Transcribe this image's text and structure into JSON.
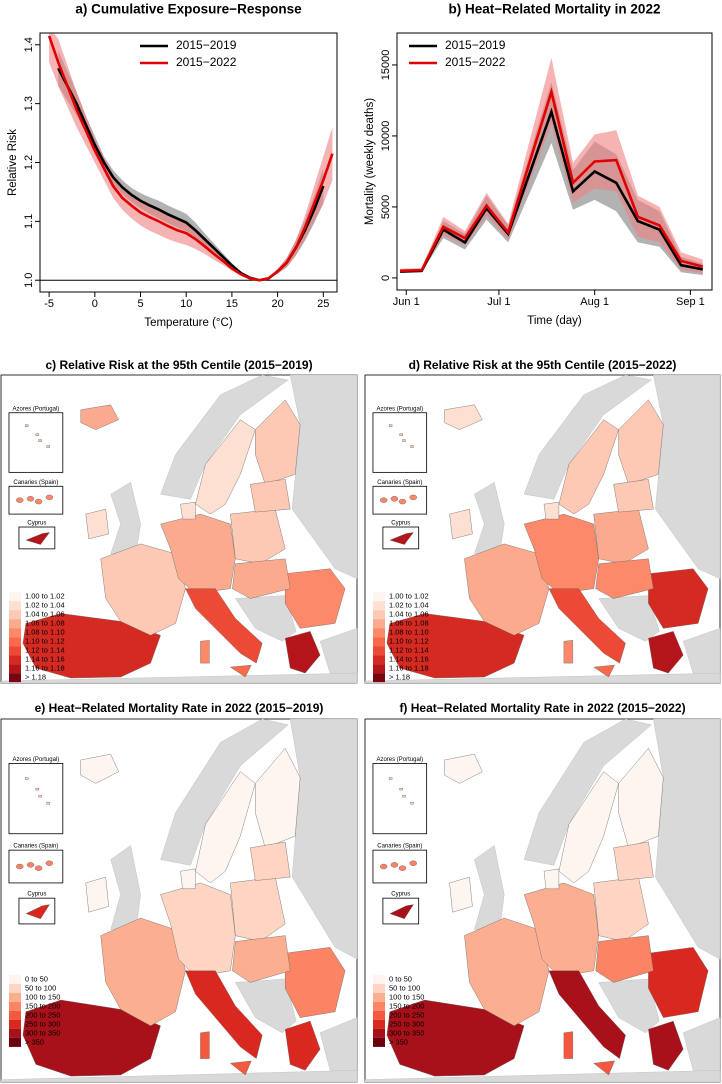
{
  "chart_data": [
    {
      "type": "line",
      "title": "a) Cumulative Exposure−Response",
      "x_label": "Temperature (°C)",
      "y_label": "Relative Risk",
      "x": [
        -5,
        -4,
        -3,
        -2,
        -1,
        0,
        1,
        2,
        3,
        4,
        5,
        6,
        7,
        8,
        9,
        10,
        11,
        12,
        13,
        14,
        15,
        16,
        17,
        18,
        19,
        20,
        21,
        22,
        23,
        24,
        25,
        26
      ],
      "xlim": [
        -6,
        26.5
      ],
      "ylim": [
        0.98,
        1.42
      ],
      "xticks": [
        -5,
        0,
        5,
        10,
        15,
        20,
        25
      ],
      "yticks": [
        {
          "value": 1,
          "label": "1.0"
        },
        1.1,
        1.2,
        1.3,
        1.4
      ],
      "hline": 1,
      "legend": "top",
      "series": [
        {
          "name": "2015−2019",
          "color": "#000000",
          "band_color": "#7f7f7f",
          "values": [
            null,
            1.36,
            1.33,
            1.3,
            1.265,
            1.23,
            1.2,
            1.175,
            1.158,
            1.145,
            1.135,
            1.127,
            1.12,
            1.112,
            1.105,
            1.098,
            1.085,
            1.07,
            1.055,
            1.04,
            1.025,
            1.012,
            1.004,
            1.0,
            1.003,
            1.015,
            1.03,
            1.055,
            1.085,
            1.12,
            1.16,
            null
          ],
          "lower": [
            null,
            1.33,
            1.305,
            1.28,
            1.25,
            1.215,
            1.19,
            1.163,
            1.146,
            1.133,
            1.122,
            1.113,
            1.105,
            1.097,
            1.09,
            1.083,
            1.072,
            1.06,
            1.047,
            1.034,
            1.021,
            1.01,
            1.003,
            1.0,
            1.002,
            1.011,
            1.022,
            1.042,
            1.067,
            1.097,
            1.13,
            null
          ],
          "upper": [
            null,
            1.39,
            1.355,
            1.32,
            1.28,
            1.245,
            1.21,
            1.187,
            1.17,
            1.157,
            1.148,
            1.141,
            1.135,
            1.127,
            1.12,
            1.113,
            1.098,
            1.08,
            1.063,
            1.046,
            1.029,
            1.014,
            1.005,
            1.0,
            1.004,
            1.019,
            1.038,
            1.068,
            1.103,
            1.143,
            1.19,
            null
          ]
        },
        {
          "name": "2015−2022",
          "color": "#e00000",
          "band_color": "#f08080",
          "values": [
            1.415,
            1.37,
            1.33,
            1.29,
            1.255,
            1.22,
            1.19,
            1.16,
            1.14,
            1.127,
            1.115,
            1.107,
            1.1,
            1.092,
            1.085,
            1.08,
            1.07,
            1.058,
            1.045,
            1.033,
            1.02,
            1.01,
            1.003,
            1.0,
            1.003,
            1.015,
            1.03,
            1.055,
            1.09,
            1.13,
            1.17,
            1.215
          ],
          "lower": [
            1.37,
            1.33,
            1.295,
            1.26,
            1.23,
            1.2,
            1.17,
            1.14,
            1.12,
            1.105,
            1.093,
            1.084,
            1.077,
            1.07,
            1.064,
            1.06,
            1.053,
            1.045,
            1.035,
            1.026,
            1.016,
            1.008,
            1.002,
            1.0,
            1.002,
            1.011,
            1.022,
            1.042,
            1.07,
            1.1,
            1.13,
            1.17
          ],
          "upper": [
            1.43,
            1.41,
            1.365,
            1.32,
            1.28,
            1.24,
            1.21,
            1.18,
            1.16,
            1.149,
            1.137,
            1.13,
            1.123,
            1.114,
            1.106,
            1.1,
            1.087,
            1.071,
            1.055,
            1.04,
            1.024,
            1.012,
            1.004,
            1.0,
            1.004,
            1.019,
            1.038,
            1.068,
            1.11,
            1.16,
            1.21,
            1.26
          ]
        }
      ]
    },
    {
      "type": "line",
      "title": "b) Heat−Related Mortality in 2022",
      "x_label": "Time (day)",
      "y_label": "Mortality (weekly deaths)",
      "x": [
        "2022-05-30",
        "2022-06-06",
        "2022-06-13",
        "2022-06-20",
        "2022-06-27",
        "2022-07-04",
        "2022-07-11",
        "2022-07-18",
        "2022-07-25",
        "2022-08-01",
        "2022-08-08",
        "2022-08-15",
        "2022-08-22",
        "2022-08-29",
        "2022-09-05"
      ],
      "xlim": [
        "2022-05-29",
        "2022-09-08"
      ],
      "ylim": [
        -850,
        17250
      ],
      "xticks": [
        {
          "value": "2022-06-01",
          "label": "Jun 1"
        },
        {
          "value": "2022-07-01",
          "label": "Jul 1"
        },
        {
          "value": "2022-08-01",
          "label": "Aug 1"
        },
        {
          "value": "2022-09-01",
          "label": "Sep 1"
        }
      ],
      "yticks": [
        0,
        5000,
        10000,
        15000
      ],
      "legend": "top",
      "series": [
        {
          "name": "2015−2019",
          "color": "#000000",
          "band_color": "#7f7f7f",
          "values": [
            450,
            500,
            3400,
            2500,
            4900,
            3100,
            7400,
            11700,
            6100,
            7500,
            6700,
            4000,
            3400,
            900,
            600
          ],
          "lower": [
            350,
            400,
            2800,
            2000,
            4100,
            2500,
            6000,
            9500,
            4800,
            5500,
            4700,
            2500,
            2200,
            400,
            200
          ],
          "upper": [
            600,
            650,
            4000,
            3100,
            5800,
            3700,
            8800,
            13800,
            7600,
            9600,
            8700,
            5500,
            4700,
            1500,
            1000
          ]
        },
        {
          "name": "2015−2022",
          "color": "#e00000",
          "band_color": "#f08080",
          "values": [
            500,
            550,
            3600,
            2800,
            5100,
            3200,
            8200,
            13100,
            6700,
            8200,
            8300,
            4300,
            3700,
            1200,
            800
          ],
          "lower": [
            400,
            420,
            3000,
            2300,
            4400,
            2700,
            6800,
            10800,
            5300,
            6300,
            6100,
            2900,
            2500,
            600,
            300
          ],
          "upper": [
            650,
            700,
            4300,
            3300,
            6000,
            3800,
            9700,
            15500,
            8100,
            10100,
            10400,
            5800,
            5000,
            1800,
            1300
          ]
        }
      ]
    },
    {
      "type": "map",
      "title": "c) Relative Risk at the 95th Centile (2015−2019)",
      "insets": [
        "Azores (Portugal)",
        "Canaries (Spain)",
        "Cyprus"
      ],
      "legend": {
        "labels": [
          "1.00 to 1.02",
          "1.02 to 1.04",
          "1.04 to 1.06",
          "1.06 to 1.08",
          "1.08 to 1.10",
          "1.10 to 1.12",
          "1.12 to 1.14",
          "1.14 to 1.16",
          "1.16 to 1.18",
          "> 1.18"
        ],
        "colors": [
          "#fff5f0",
          "#fee0d2",
          "#fdc9b4",
          "#fcaa8e",
          "#fc8a6a",
          "#f96a4b",
          "#ec4a35",
          "#d42a22",
          "#b3151b",
          "#7a0510"
        ]
      }
    },
    {
      "type": "map",
      "title": "d) Relative Risk at the 95th Centile (2015−2022)",
      "insets": [
        "Azores (Portugal)",
        "Canaries (Spain)",
        "Cyprus"
      ],
      "legend": {
        "labels": [
          "1.00 to 1.02",
          "1.02 to 1.04",
          "1.04 to 1.06",
          "1.06 to 1.08",
          "1.08 to 1.10",
          "1.10 to 1.12",
          "1.12 to 1.14",
          "1.14 to 1.16",
          "1.16 to 1.18",
          "> 1.18"
        ],
        "colors": [
          "#fff5f0",
          "#fee0d2",
          "#fdc9b4",
          "#fcaa8e",
          "#fc8a6a",
          "#f96a4b",
          "#ec4a35",
          "#d42a22",
          "#b3151b",
          "#7a0510"
        ]
      }
    },
    {
      "type": "map",
      "title": "e) Heat−Related Mortality Rate in 2022 (2015−2019)",
      "insets": [
        "Azores (Portugal)",
        "Canaries (Spain)",
        "Cyprus"
      ],
      "legend": {
        "labels": [
          "0 to 50",
          "50 to 100",
          "100 to 150",
          "150 to 200",
          "200 to 250",
          "250 to 300",
          "300 to 350",
          "> 350"
        ],
        "colors": [
          "#fff5f0",
          "#fdd5c2",
          "#fcae91",
          "#fb8465",
          "#f4583e",
          "#d9281f",
          "#a8111a",
          "#6b0010"
        ]
      }
    },
    {
      "type": "map",
      "title": "f) Heat−Related Mortality Rate in 2022 (2015−2022)",
      "insets": [
        "Azores (Portugal)",
        "Canaries (Spain)",
        "Cyprus"
      ],
      "legend": {
        "labels": [
          "0 to 50",
          "50 to 100",
          "100 to 150",
          "150 to 200",
          "200 to 250",
          "250 to 300",
          "300 to 350",
          "> 350"
        ],
        "colors": [
          "#fff5f0",
          "#fdd5c2",
          "#fcae91",
          "#fb8465",
          "#f4583e",
          "#d9281f",
          "#a8111a",
          "#6b0010"
        ]
      }
    }
  ]
}
